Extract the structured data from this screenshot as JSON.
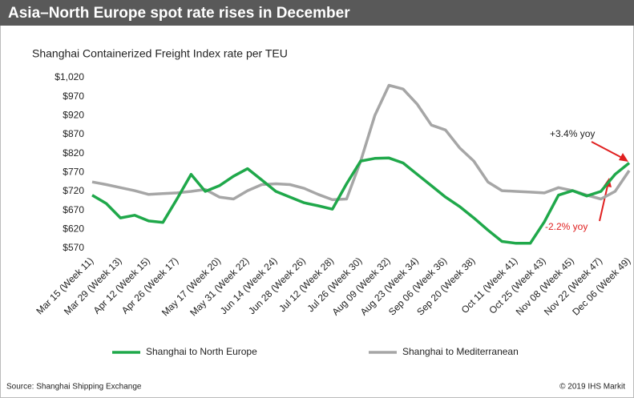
{
  "chart_data": {
    "type": "line",
    "title": "Asia–North Europe spot rate rises in December",
    "subtitle": "Shanghai Containerized Freight Index rate per TEU",
    "categories": [
      "Mar 15 (Week 11)",
      null,
      "Mar 29 (Week 13)",
      null,
      "Apr 12 (Week 15)",
      null,
      "Apr 26 (Week 17)",
      null,
      null,
      "May 17 (Week 20)",
      null,
      "May 31 (Week 22)",
      null,
      "Jun 14 (Week 24)",
      null,
      "Jun 28 (Week 26)",
      null,
      "Jul 12 (Week 28)",
      null,
      "Jul 26 (Week 30)",
      null,
      "Aug 09 (Week 32)",
      null,
      "Aug 23 (Week 34)",
      null,
      "Sep 06 (Week 36)",
      null,
      "Sep 20 (Week 38)",
      null,
      null,
      "Oct 11 (Week 41)",
      null,
      "Oct 25 (Week 43)",
      null,
      "Nov 08 (Week 45)",
      null,
      "Nov 22 (Week 47)",
      null,
      "Dec 06 (Week 49)"
    ],
    "series": [
      {
        "name": "Shanghai to North Europe",
        "color": "#1fa84a",
        "values": [
          710,
          688,
          650,
          657,
          642,
          638,
          700,
          765,
          720,
          735,
          760,
          780,
          750,
          720,
          705,
          690,
          682,
          673,
          740,
          800,
          807,
          808,
          795,
          765,
          735,
          705,
          680,
          650,
          618,
          588,
          583,
          583,
          640,
          710,
          722,
          708,
          720,
          765,
          795
        ]
      },
      {
        "name": "Shanghai to Mediterranean",
        "color": "#a6a6a6",
        "values": [
          745,
          738,
          730,
          722,
          712,
          714,
          716,
          720,
          725,
          705,
          700,
          722,
          738,
          740,
          738,
          728,
          712,
          698,
          700,
          800,
          920,
          1000,
          990,
          950,
          895,
          882,
          835,
          800,
          745,
          722,
          720,
          718,
          716,
          730,
          722,
          710,
          700,
          720,
          775
        ]
      }
    ],
    "ylim": [
      570,
      1020
    ],
    "yticks": [
      {
        "value": 570,
        "label": "$570"
      },
      {
        "value": 620,
        "label": "$620"
      },
      {
        "value": 670,
        "label": "$670"
      },
      {
        "value": 720,
        "label": "$720"
      },
      {
        "value": 770,
        "label": "$770"
      },
      {
        "value": 820,
        "label": "$820"
      },
      {
        "value": 870,
        "label": "$870"
      },
      {
        "value": 920,
        "label": "$920"
      },
      {
        "value": 970,
        "label": "$970"
      },
      {
        "value": 1020,
        "label": "$1,020"
      }
    ],
    "grid": false,
    "legend": "bottom",
    "annotations": [
      {
        "text": "+3.4% yoy",
        "color": "#222222"
      },
      {
        "text": "-2.2% yoy",
        "color": "#e02020"
      }
    ],
    "source": "Source: Shanghai Shipping Exchange",
    "credit": "© 2019 IHS Markit"
  }
}
